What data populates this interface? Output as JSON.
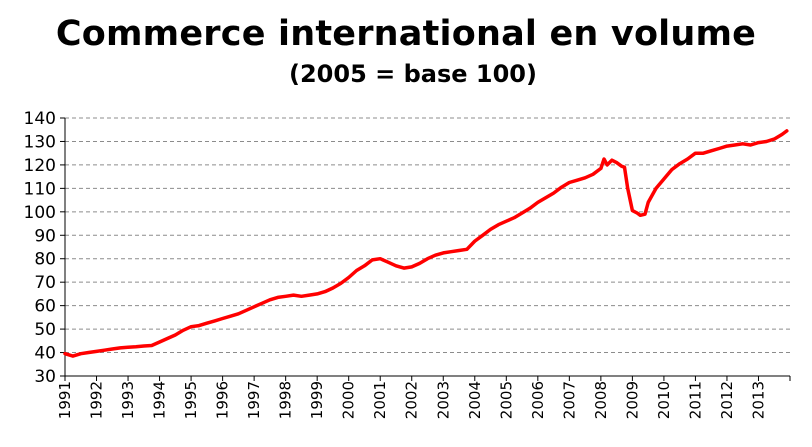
{
  "chart_data": {
    "type": "line",
    "title": "Commerce international en volume",
    "subtitle": "(2005 = base 100)",
    "xlabel": "",
    "ylabel": "",
    "ylim": [
      30,
      140
    ],
    "yticks": [
      30,
      40,
      50,
      60,
      70,
      80,
      90,
      100,
      110,
      120,
      130,
      140
    ],
    "xlim": [
      1991,
      2014
    ],
    "xticks": [
      "1991",
      "1992",
      "1993",
      "1994",
      "1995",
      "1996",
      "1997",
      "1998",
      "1999",
      "2000",
      "2001",
      "2002",
      "2003",
      "2004",
      "2005",
      "2006",
      "2007",
      "2008",
      "2009",
      "2010",
      "2011",
      "2012",
      "2013"
    ],
    "grid": "horizontal dashed",
    "line_color": "#ff0000",
    "series": [
      {
        "x": [
          1991.0,
          1991.25,
          1991.5,
          1991.75,
          1992.0,
          1992.25,
          1992.5,
          1992.75,
          1993.0,
          1993.25,
          1993.5,
          1993.75,
          1994.0,
          1994.25,
          1994.5,
          1994.75,
          1995.0,
          1995.25,
          1995.5,
          1995.75,
          1996.0,
          1996.25,
          1996.5,
          1996.75,
          1997.0,
          1997.25,
          1997.5,
          1997.75,
          1998.0,
          1998.25,
          1998.5,
          1998.75,
          1999.0,
          1999.25,
          1999.5,
          1999.75,
          2000.0,
          2000.25,
          2000.5,
          2000.75,
          2001.0,
          2001.25,
          2001.5,
          2001.75,
          2002.0,
          2002.25,
          2002.5,
          2002.75,
          2003.0,
          2003.25,
          2003.5,
          2003.75,
          2004.0,
          2004.25,
          2004.5,
          2004.75,
          2005.0,
          2005.25,
          2005.5,
          2005.75,
          2006.0,
          2006.25,
          2006.5,
          2006.75,
          2007.0,
          2007.25,
          2007.5,
          2007.75,
          2008.0,
          2008.1,
          2008.2,
          2008.35,
          2008.5,
          2008.65,
          2008.75,
          2008.85,
          2009.0,
          2009.15,
          2009.25,
          2009.4,
          2009.5,
          2009.75,
          2010.0,
          2010.25,
          2010.5,
          2010.75,
          2011.0,
          2011.25,
          2011.5,
          2011.75,
          2012.0,
          2012.25,
          2012.5,
          2012.75,
          2013.0,
          2013.25,
          2013.5,
          2013.75,
          2013.9
        ],
        "values": [
          39.5,
          38.5,
          39.5,
          40.0,
          40.5,
          41.0,
          41.5,
          42.0,
          42.3,
          42.5,
          42.8,
          43.0,
          44.5,
          46.0,
          47.5,
          49.5,
          51.0,
          51.5,
          52.5,
          53.5,
          54.5,
          55.5,
          56.5,
          58.0,
          59.5,
          61.0,
          62.5,
          63.5,
          64.0,
          64.5,
          64.0,
          64.5,
          65.0,
          66.0,
          67.5,
          69.5,
          72.0,
          75.0,
          77.0,
          79.5,
          80.0,
          78.5,
          77.0,
          76.0,
          76.5,
          78.0,
          80.0,
          81.5,
          82.5,
          83.0,
          83.5,
          84.0,
          87.5,
          90.0,
          92.5,
          94.5,
          96.0,
          97.5,
          99.5,
          101.5,
          104.0,
          106.0,
          108.0,
          110.5,
          112.5,
          113.5,
          114.5,
          116.0,
          118.5,
          122.5,
          120.0,
          122.0,
          121.0,
          119.5,
          119.0,
          110.0,
          100.5,
          99.5,
          98.5,
          99.0,
          104.0,
          110.0,
          114.0,
          118.0,
          120.5,
          122.5,
          125.0,
          125.0,
          126.0,
          127.0,
          128.0,
          128.5,
          129.0,
          128.5,
          129.5,
          130.0,
          131.0,
          133.0,
          134.5
        ]
      }
    ]
  }
}
